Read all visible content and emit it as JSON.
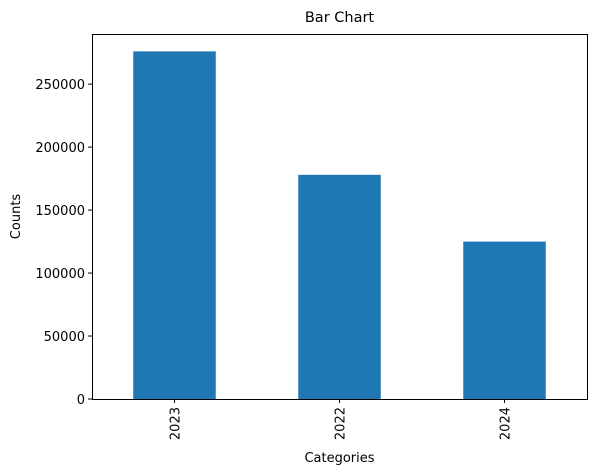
{
  "chart_data": {
    "type": "bar",
    "title": "Bar Chart",
    "xlabel": "Categories",
    "ylabel": "Counts",
    "categories": [
      "2023",
      "2022",
      "2024"
    ],
    "values": [
      276000,
      178000,
      125000
    ],
    "ylim": [
      0,
      289800
    ],
    "yticks": [
      0,
      50000,
      100000,
      150000,
      200000,
      250000
    ],
    "ytick_labels": [
      "0",
      "50000",
      "100000",
      "150000",
      "200000",
      "250000"
    ],
    "bar_color": "#1f77b4",
    "grid": false,
    "legend": "none"
  }
}
